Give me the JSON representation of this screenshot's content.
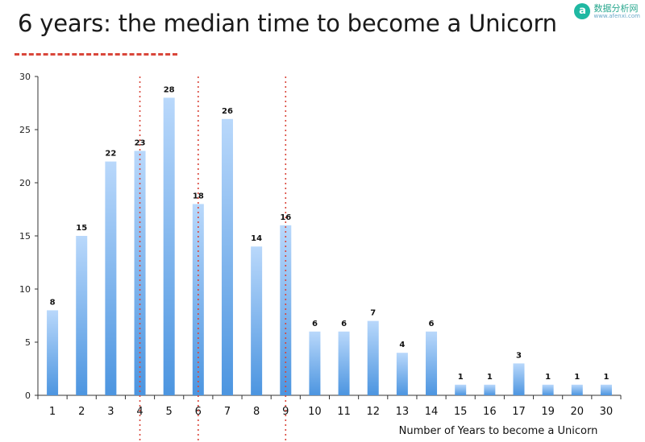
{
  "slide": {
    "title": "6 years: the median time to become a Unicorn"
  },
  "watermark": {
    "logo_letter": "a",
    "name": "数据分析网",
    "url": "www.afenxi.com"
  },
  "colors": {
    "bar_top": "#b9d8fb",
    "bar_bottom": "#4c95e0",
    "marker_line": "#d9463a",
    "title_underline": "#d9463a"
  },
  "chart_data": {
    "type": "bar",
    "categories": [
      "1",
      "2",
      "3",
      "4",
      "5",
      "6",
      "7",
      "8",
      "9",
      "10",
      "11",
      "12",
      "13",
      "14",
      "15",
      "16",
      "17",
      "19",
      "20",
      "30"
    ],
    "values": [
      8,
      15,
      22,
      23,
      28,
      18,
      26,
      14,
      16,
      6,
      6,
      7,
      4,
      6,
      1,
      1,
      3,
      1,
      1,
      1
    ],
    "data_labels": [
      "8",
      "15",
      "22",
      "23",
      "28",
      "18",
      "26",
      "14",
      "16",
      "6",
      "6",
      "7",
      "4",
      "6",
      "1",
      "1",
      "3",
      "1",
      "1",
      "1"
    ],
    "ylim": [
      0,
      30
    ],
    "yticks": [
      0,
      5,
      10,
      15,
      20,
      25,
      30
    ],
    "ytick_labels": [
      "0",
      "5",
      "10",
      "15",
      "20",
      "25",
      "30"
    ],
    "xlabel": "Number of Years to become a Unicorn",
    "ylabel": "",
    "grid": false,
    "legend": "none",
    "reference_lines": [
      {
        "at_category": "4",
        "style": "dotted"
      },
      {
        "at_category": "6",
        "style": "dotted"
      },
      {
        "at_category": "9",
        "style": "dotted"
      }
    ]
  }
}
